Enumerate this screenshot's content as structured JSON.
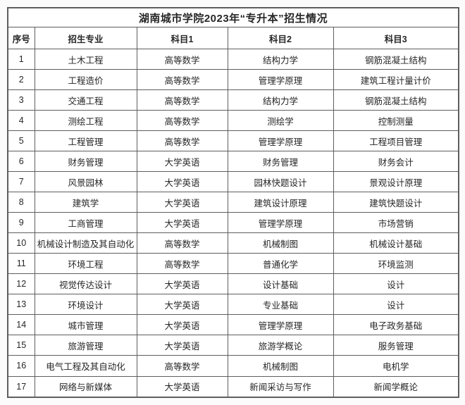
{
  "chart_data": {
    "type": "table",
    "title": "湖南城市学院2023年“专升本”招生情况",
    "columns": [
      "序号",
      "招生专业",
      "科目1",
      "科目2",
      "科目3"
    ],
    "rows": [
      [
        "1",
        "土木工程",
        "高等数学",
        "结构力学",
        "钢筋混凝土结构"
      ],
      [
        "2",
        "工程造价",
        "高等数学",
        "管理学原理",
        "建筑工程计量计价"
      ],
      [
        "3",
        "交通工程",
        "高等数学",
        "结构力学",
        "钢筋混凝土结构"
      ],
      [
        "4",
        "测绘工程",
        "高等数学",
        "测绘学",
        "控制测量"
      ],
      [
        "5",
        "工程管理",
        "高等数学",
        "管理学原理",
        "工程项目管理"
      ],
      [
        "6",
        "财务管理",
        "大学英语",
        "财务管理",
        "财务会计"
      ],
      [
        "7",
        "风景园林",
        "大学英语",
        "园林快题设计",
        "景观设计原理"
      ],
      [
        "8",
        "建筑学",
        "大学英语",
        "建筑设计原理",
        "建筑快题设计"
      ],
      [
        "9",
        "工商管理",
        "大学英语",
        "管理学原理",
        "市场营销"
      ],
      [
        "10",
        "机械设计制造及其自动化",
        "高等数学",
        "机械制图",
        "机械设计基础"
      ],
      [
        "11",
        "环境工程",
        "高等数学",
        "普通化学",
        "环境监测"
      ],
      [
        "12",
        "视觉传达设计",
        "大学英语",
        "设计基础",
        "设计"
      ],
      [
        "13",
        "环境设计",
        "大学英语",
        "专业基础",
        "设计"
      ],
      [
        "14",
        "城市管理",
        "大学英语",
        "管理学原理",
        "电子政务基础"
      ],
      [
        "15",
        "旅游管理",
        "大学英语",
        "旅游学概论",
        "服务管理"
      ],
      [
        "16",
        "电气工程及其自动化",
        "高等数学",
        "机械制图",
        "电机学"
      ],
      [
        "17",
        "网络与新媒体",
        "大学英语",
        "新闻采访与写作",
        "新闻学概论"
      ]
    ],
    "layout": {
      "grid": true,
      "header_rows": 2
    },
    "colors": {
      "border": "#5e5e5e",
      "text": "#262626",
      "table_background": "#ffffff",
      "page_background": "#fbfbfb"
    }
  }
}
